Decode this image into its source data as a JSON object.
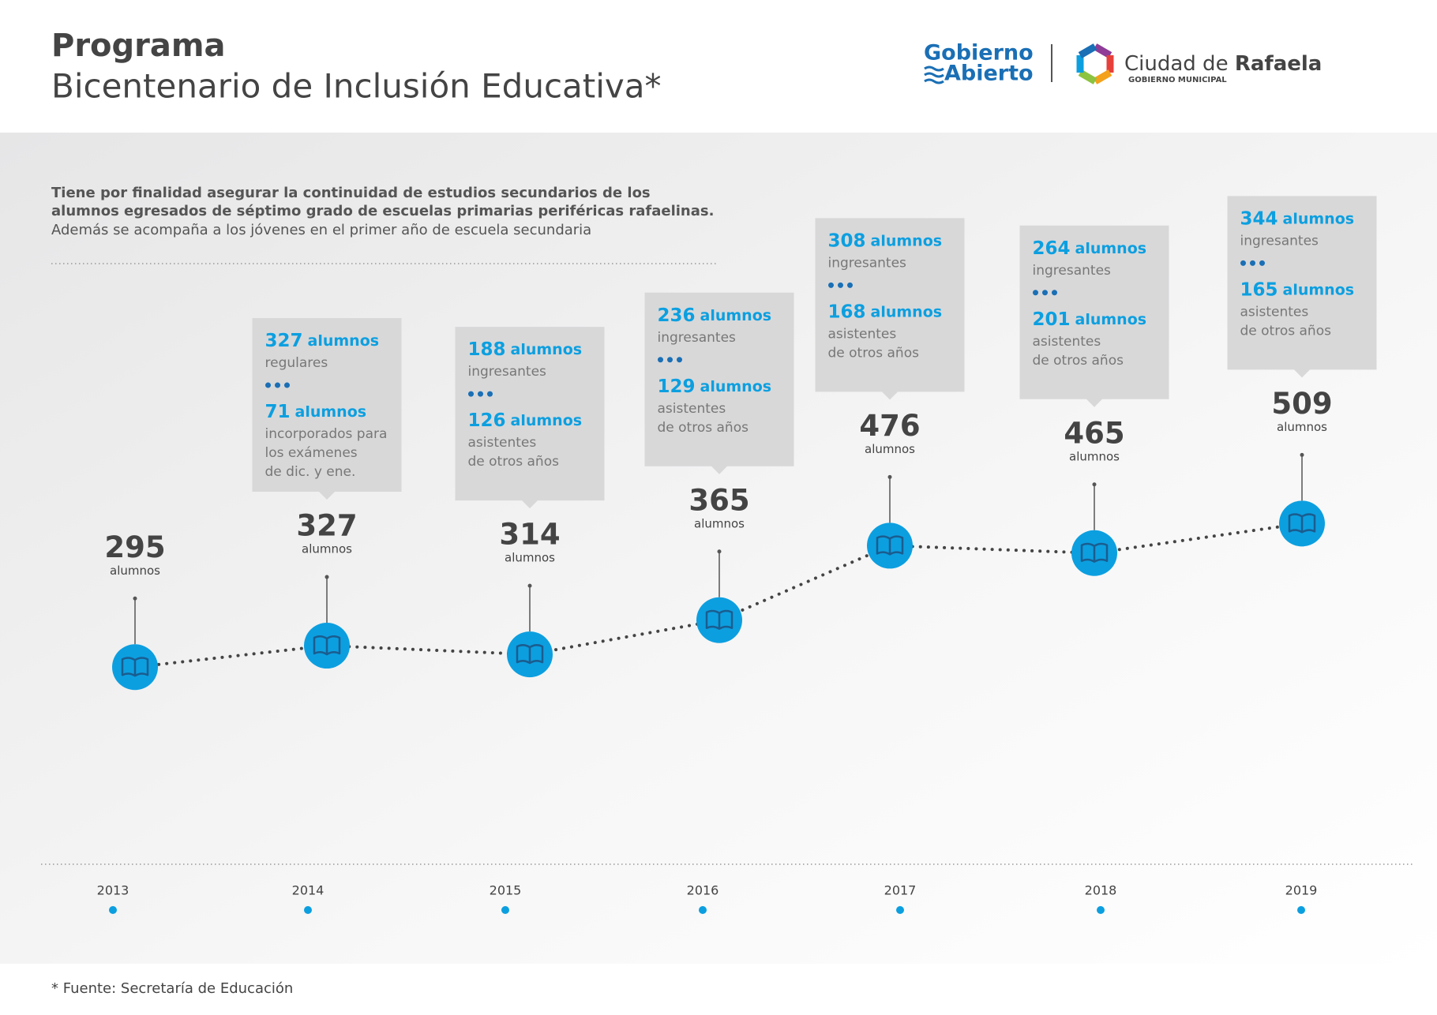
{
  "header": {
    "title": "Programa",
    "subtitle": "Bicentenario de Inclusión Educativa*",
    "logo_left": [
      "Gobierno",
      "Abierto"
    ],
    "logo_right": {
      "name_regular": "Ciudad de",
      "name_bold": "Rafaela",
      "tagline": "GOBIERNO MUNICIPAL"
    }
  },
  "intro": {
    "bold_lines": [
      "Tiene por finalidad asegurar la continuidad de estudios secundarios de los",
      "alumnos egresados de séptimo grado de escuelas primarias periféricas rafaelinas."
    ],
    "line": "Además se acompaña a los jóvenes en el primer año de escuela secundaria"
  },
  "chart_data": {
    "type": "line",
    "categories": [
      "2013",
      "2014",
      "2015",
      "2016",
      "2017",
      "2018",
      "2019"
    ],
    "values": [
      295,
      327,
      314,
      365,
      476,
      465,
      509
    ],
    "unit": "alumnos",
    "color": "#0c9fe0",
    "line_color": "#444444",
    "ylim": [
      200,
      560
    ],
    "callouts": [
      null,
      [
        {
          "number": 327,
          "unit": "alumnos",
          "desc": [
            "regulares"
          ]
        },
        {
          "number": 71,
          "unit": "alumnos",
          "desc": [
            "incorporados para",
            "los exámenes",
            "de dic. y ene."
          ]
        }
      ],
      [
        {
          "number": 188,
          "unit": "alumnos",
          "desc": [
            "ingresantes"
          ]
        },
        {
          "number": 126,
          "unit": "alumnos",
          "desc": [
            "asistentes",
            "de otros años"
          ]
        }
      ],
      [
        {
          "number": 236,
          "unit": "alumnos",
          "desc": [
            "ingresantes"
          ]
        },
        {
          "number": 129,
          "unit": "alumnos",
          "desc": [
            "asistentes",
            "de otros años"
          ]
        }
      ],
      [
        {
          "number": 308,
          "unit": "alumnos",
          "desc": [
            "ingresantes"
          ]
        },
        {
          "number": 168,
          "unit": "alumnos",
          "desc": [
            "asistentes",
            "de otros años"
          ]
        }
      ],
      [
        {
          "number": 264,
          "unit": "alumnos",
          "desc": [
            "ingresantes"
          ]
        },
        {
          "number": 201,
          "unit": "alumnos",
          "desc": [
            "asistentes",
            "de otros años"
          ]
        }
      ],
      [
        {
          "number": 344,
          "unit": "alumnos",
          "desc": [
            "ingresantes"
          ]
        },
        {
          "number": 165,
          "unit": "alumnos",
          "desc": [
            "asistentes",
            "de otros años"
          ]
        }
      ]
    ]
  },
  "footnote": "* Fuente: Secretaría de Educación"
}
